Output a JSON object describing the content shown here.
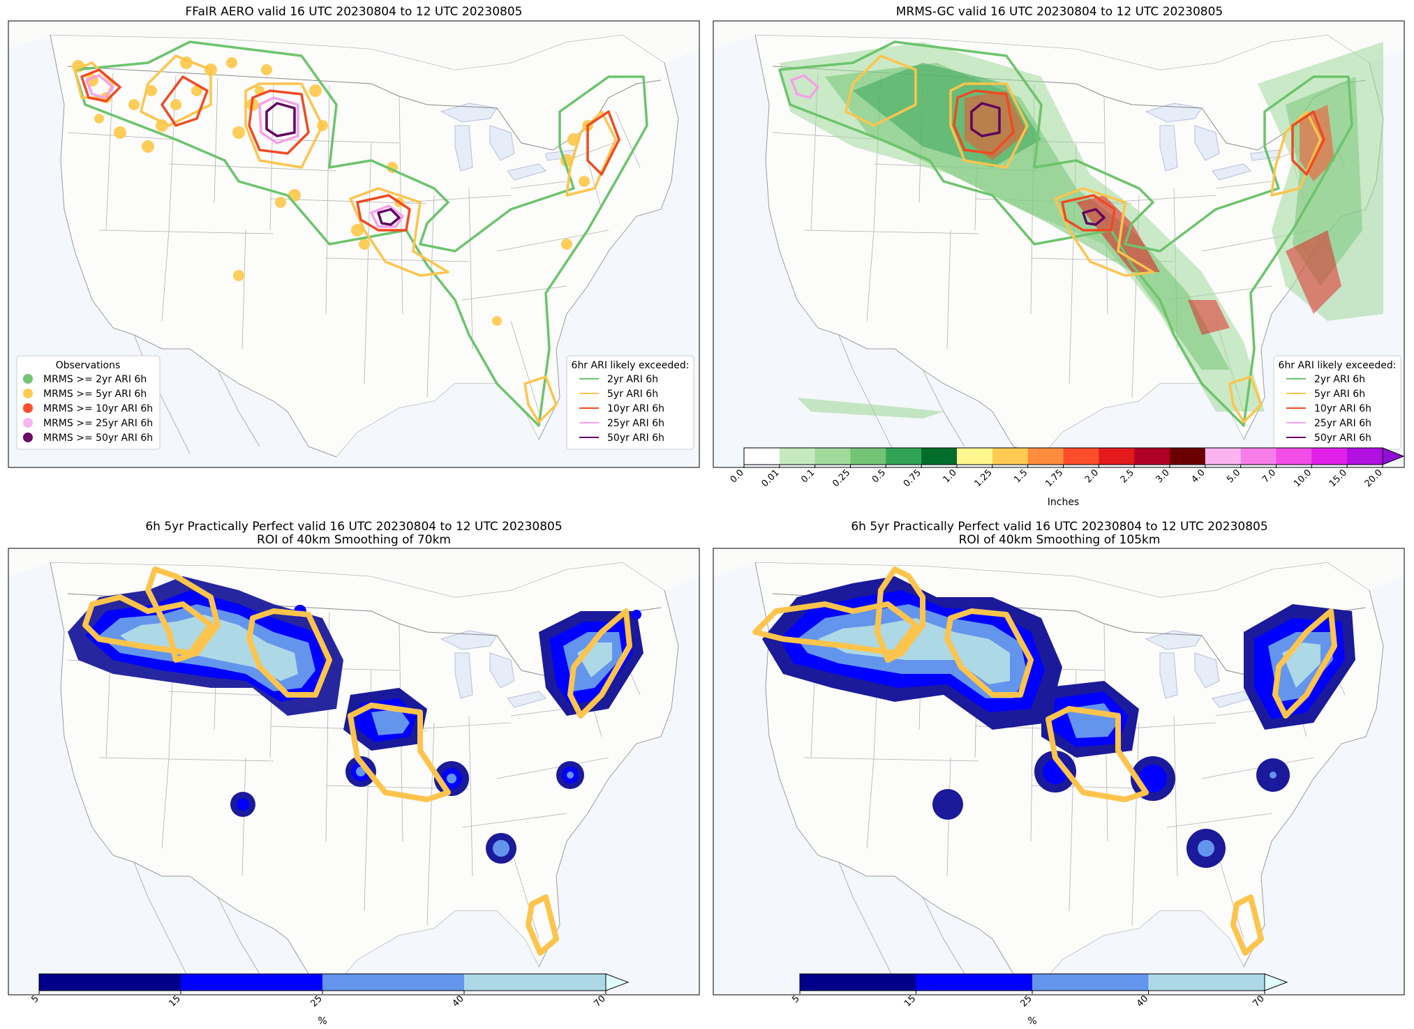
{
  "panels": [
    {
      "title": "FFaIR AERO valid 16 UTC 20230804 to 12 UTC 20230805",
      "obs_legend": {
        "title": "Observations",
        "items": [
          {
            "label": "MRMS >= 2yr ARI 6h",
            "color": "#74c476"
          },
          {
            "label": "MRMS >= 5yr ARI 6h",
            "color": "#fecb52"
          },
          {
            "label": "MRMS >= 10yr ARI 6h",
            "color": "#fc4e2a"
          },
          {
            "label": "MRMS >= 25yr ARI 6h",
            "color": "#fbb4f0"
          },
          {
            "label": "MRMS >= 50yr ARI 6h",
            "color": "#6a0a66"
          }
        ]
      },
      "ari_legend": {
        "title": "6hr ARI likely exceeded:",
        "items": [
          {
            "label": "2yr ARI 6h",
            "color": "#6cc46c"
          },
          {
            "label": "5yr ARI 6h",
            "color": "#fdc44c"
          },
          {
            "label": "10yr ARI 6h",
            "color": "#f04a22"
          },
          {
            "label": "25yr ARI 6h",
            "color": "#f7a0e8"
          },
          {
            "label": "50yr ARI 6h",
            "color": "#600060"
          }
        ]
      }
    },
    {
      "title": "MRMS-GC valid 16 UTC 20230804 to 12 UTC 20230805",
      "ari_legend": {
        "title": "6hr ARI likely exceeded:",
        "items": [
          {
            "label": "2yr ARI 6h",
            "color": "#6cc46c"
          },
          {
            "label": "5yr ARI 6h",
            "color": "#fdc44c"
          },
          {
            "label": "10yr ARI 6h",
            "color": "#f04a22"
          },
          {
            "label": "25yr ARI 6h",
            "color": "#f7a0e8"
          },
          {
            "label": "50yr ARI 6h",
            "color": "#600060"
          }
        ]
      },
      "colorbar": {
        "label": "Inches",
        "ticks": [
          "0.0",
          "0.01",
          "0.1",
          "0.25",
          "0.5",
          "0.75",
          "1.0",
          "1.25",
          "1.5",
          "1.75",
          "2.0",
          "2.5",
          "3.0",
          "4.0",
          "5.0",
          "7.0",
          "10.0",
          "15.0",
          "20.0"
        ],
        "colors": [
          "#ffffff",
          "#c7e9c0",
          "#a1d99b",
          "#74c476",
          "#31a354",
          "#006d2c",
          "#fff68f",
          "#fecb52",
          "#fd8d3c",
          "#fc4e2a",
          "#e31a1c",
          "#b10026",
          "#6b0000",
          "#fbb4f0",
          "#f77ee8",
          "#f24de6",
          "#e020e8",
          "#b010e0"
        ]
      }
    },
    {
      "title_line1": "6h 5yr Practically Perfect valid 16 UTC 20230804 to 12 UTC 20230805",
      "title_line2": "ROI of 40km Smoothing of 70km",
      "colorbar": {
        "label": "%",
        "ticks": [
          "5",
          "15",
          "25",
          "40",
          "70"
        ],
        "colors": [
          "#00008b",
          "#0000ff",
          "#6495ed",
          "#add8e6"
        ],
        "extend_color": "#e0ffff"
      }
    },
    {
      "title_line1": "6h 5yr Practically Perfect valid 16 UTC 20230804 to 12 UTC 20230805",
      "title_line2": "ROI of 40km Smoothing of 105km",
      "colorbar": {
        "label": "%",
        "ticks": [
          "5",
          "15",
          "25",
          "40",
          "70"
        ],
        "colors": [
          "#00008b",
          "#0000ff",
          "#6495ed",
          "#add8e6"
        ],
        "extend_color": "#e0ffff"
      }
    }
  ]
}
